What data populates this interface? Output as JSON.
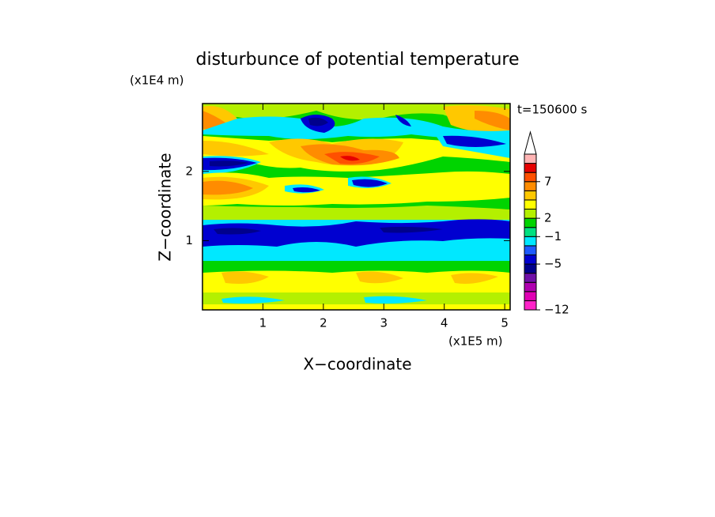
{
  "chart_data": {
    "type": "contour",
    "title": "disturbunce of potential temperature",
    "y_unit": "(x1E4 m)",
    "x_unit": "(x1E5 m)",
    "xlabel": "X−coordinate",
    "ylabel": "Z−coordinate",
    "time_label": "t=150600 s",
    "xlim": [
      0,
      5.09
    ],
    "xticks": [
      1,
      2,
      3,
      4,
      5
    ],
    "ylim": [
      0,
      2.98
    ],
    "yticks": [
      1,
      2
    ],
    "colorbar": {
      "levels": [
        -12,
        -10,
        -9,
        -8,
        -6,
        -5,
        -3,
        -2,
        -1,
        0,
        2,
        3,
        4,
        5,
        7,
        9,
        11,
        12
      ],
      "colors": [
        "#ff22c8",
        "#e000b4",
        "#b000b0",
        "#7010a8",
        "#00008c",
        "#0000d0",
        "#1e5aff",
        "#00e8ff",
        "#00e080",
        "#00d400",
        "#b4f000",
        "#ffff00",
        "#ffc800",
        "#ff8c00",
        "#ff5000",
        "#e60000",
        "#ffb4b4"
      ],
      "ticks": [
        {
          "value": -12,
          "label": "−12"
        },
        {
          "value": -5,
          "label": "−5"
        },
        {
          "value": -1,
          "label": "−1"
        },
        2,
        7
      ]
    }
  }
}
